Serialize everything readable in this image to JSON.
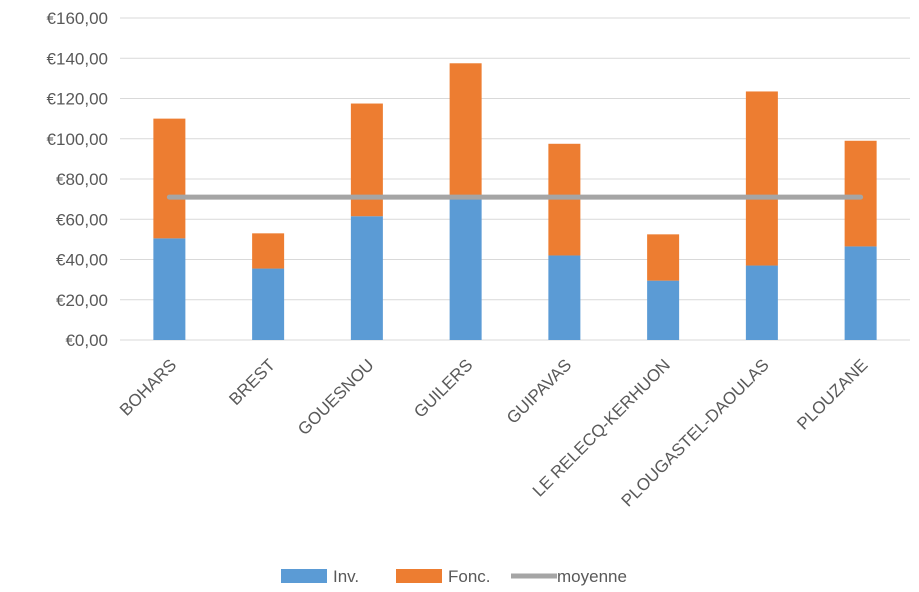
{
  "chart_data": {
    "type": "bar",
    "stacked": true,
    "categories": [
      "BOHARS",
      "BREST",
      "GOUESNOU",
      "GUILERS",
      "GUIPAVAS",
      "LE RELECQ-KERHUON",
      "PLOUGASTEL-DAOULAS",
      "PLOUZANE"
    ],
    "series": [
      {
        "name": "Inv.",
        "type": "bar",
        "color": "#5B9BD5",
        "values": [
          50.5,
          35.5,
          61.5,
          70.0,
          42.0,
          29.5,
          37.0,
          46.5
        ]
      },
      {
        "name": "Fonc.",
        "type": "bar",
        "color": "#ED7D31",
        "values": [
          59.5,
          17.5,
          56.0,
          67.5,
          55.5,
          23.0,
          86.5,
          52.5
        ]
      },
      {
        "name": "moyenne",
        "type": "line",
        "color": "#A5A5A5",
        "values": [
          71,
          71,
          71,
          71,
          71,
          71,
          71,
          71
        ]
      }
    ],
    "yticks": [
      "€0,00",
      "€20,00",
      "€40,00",
      "€60,00",
      "€80,00",
      "€100,00",
      "€120,00",
      "€140,00",
      "€160,00"
    ],
    "ylim": [
      0,
      160
    ],
    "title": "",
    "xlabel": "",
    "ylabel": "",
    "grid": true,
    "legend_position": "bottom"
  }
}
